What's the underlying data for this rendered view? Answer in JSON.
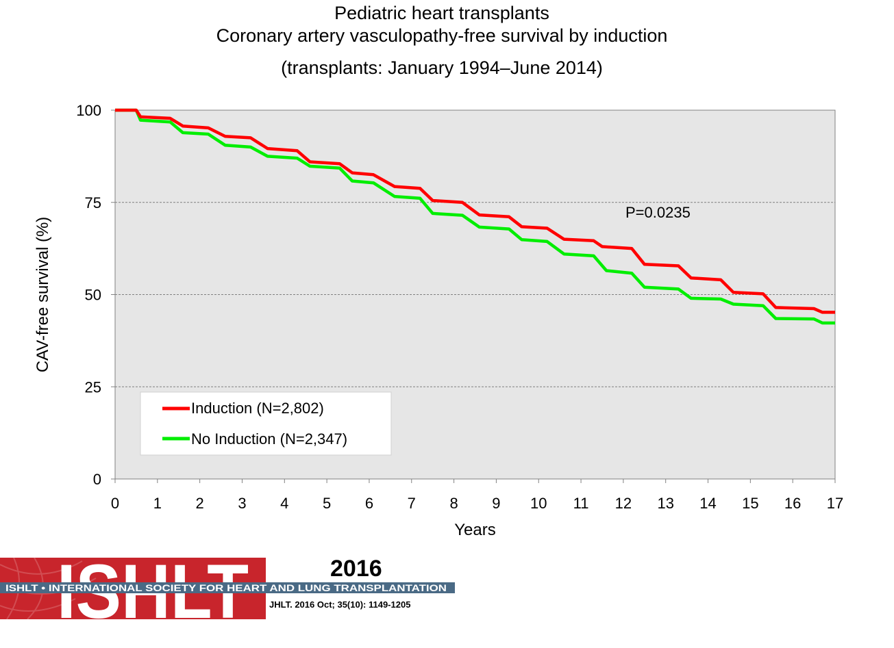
{
  "title": {
    "line1": "Pediatric heart transplants",
    "line2": "Coronary artery vasculopathy-free survival by induction",
    "line3": "(transplants: January 1994–June 2014)"
  },
  "chart_data": {
    "type": "line",
    "xlabel": "Years",
    "ylabel": "CAV-free survival (%)",
    "xlim": [
      0,
      17
    ],
    "ylim": [
      0,
      100
    ],
    "xticks": [
      "0",
      "1",
      "2",
      "3",
      "4",
      "5",
      "6",
      "7",
      "8",
      "9",
      "10",
      "11",
      "12",
      "13",
      "14",
      "15",
      "16",
      "17"
    ],
    "yticks": [
      "0",
      "25",
      "50",
      "75",
      "100"
    ],
    "grid": "horizontal dashed",
    "annotation": "P=0.0235",
    "legend_placement": "bottom-left",
    "series": [
      {
        "name": "Induction (N=2,802)",
        "color": "#ff0000",
        "x": [
          0,
          0.5,
          0.6,
          1.3,
          1.6,
          2.2,
          2.6,
          3.2,
          3.6,
          4.3,
          4.6,
          5.3,
          5.6,
          6.1,
          6.6,
          7.2,
          7.5,
          8.2,
          8.6,
          9.3,
          9.6,
          10.2,
          10.6,
          11.3,
          11.5,
          12.2,
          12.5,
          13.3,
          13.6,
          14.3,
          14.6,
          15.3,
          15.6,
          16.5,
          16.7,
          17
        ],
        "y": [
          100,
          100,
          98.2,
          97.8,
          95.7,
          95.2,
          92.9,
          92.5,
          89.6,
          89.0,
          86.0,
          85.5,
          83.0,
          82.5,
          79.3,
          78.8,
          75.5,
          75.0,
          71.6,
          71.1,
          68.4,
          68.0,
          65.0,
          64.6,
          63.0,
          62.5,
          58.2,
          57.8,
          54.5,
          54.0,
          50.6,
          50.2,
          46.5,
          46.2,
          45.2,
          45.2
        ]
      },
      {
        "name": "No Induction (N=2,347)",
        "color": "#00ee00",
        "x": [
          0,
          0.5,
          0.6,
          1.3,
          1.6,
          2.2,
          2.6,
          3.2,
          3.6,
          4.3,
          4.6,
          5.3,
          5.6,
          6.1,
          6.6,
          7.2,
          7.5,
          8.2,
          8.6,
          9.3,
          9.6,
          10.2,
          10.6,
          11.3,
          11.6,
          12.2,
          12.5,
          13.3,
          13.6,
          14.3,
          14.6,
          15.3,
          15.6,
          16.5,
          16.7,
          17
        ],
        "y": [
          100,
          100,
          97.3,
          96.8,
          93.9,
          93.5,
          90.5,
          90.0,
          87.5,
          87.0,
          84.8,
          84.3,
          80.8,
          80.3,
          76.6,
          76.1,
          72.0,
          71.5,
          68.3,
          67.8,
          64.9,
          64.4,
          61.0,
          60.5,
          56.5,
          55.8,
          52.0,
          51.5,
          49.0,
          48.8,
          47.4,
          47.0,
          43.5,
          43.4,
          42.3,
          42.3
        ]
      }
    ]
  },
  "branding": {
    "logo_text": "ISHLT",
    "banner_text": "ISHLT • INTERNATIONAL SOCIETY FOR HEART AND LUNG TRANSPLANTATION",
    "year": "2016",
    "citation": "JHLT. 2016 Oct; 35(10): 1149-1205",
    "logo_color": "#c8252c",
    "banner_color": "#4a6a85"
  }
}
